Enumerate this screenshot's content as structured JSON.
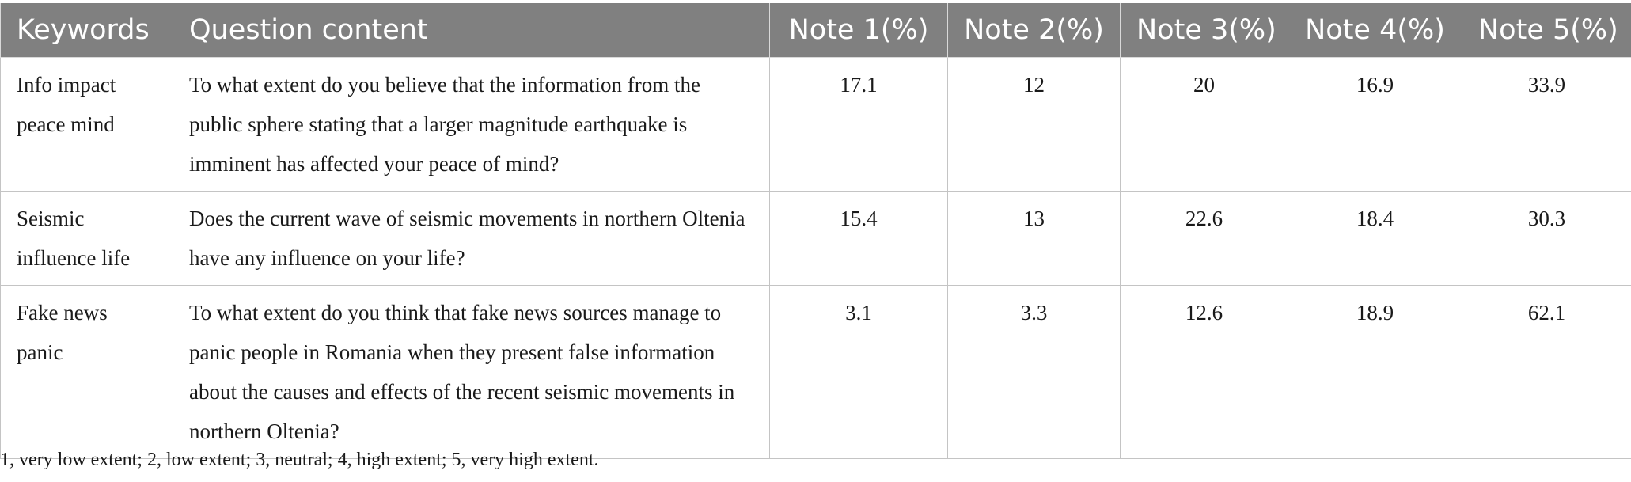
{
  "table": {
    "headers": [
      "Keywords",
      "Question content",
      "Note 1(%)",
      "Note 2(%)",
      "Note 3(%)",
      "Note 4(%)",
      "Note 5(%)"
    ],
    "rows": [
      {
        "keyword": "Info impact peace mind",
        "question": "To what extent do you believe that the information from the public sphere stating that a larger magnitude earthquake is imminent has affected your peace of mind?",
        "notes": [
          "17.1",
          "12",
          "20",
          "16.9",
          "33.9"
        ]
      },
      {
        "keyword": "Seismic influence life",
        "question": "Does the current wave of seismic movements in northern Oltenia have any influence on your life?",
        "notes": [
          "15.4",
          "13",
          "22.6",
          "18.4",
          "30.3"
        ]
      },
      {
        "keyword": "Fake news panic",
        "question": "To what extent do you think that fake news sources manage to panic people in Romania when they present false information about the causes and effects of the recent seismic movements in northern Oltenia?",
        "notes": [
          "3.1",
          "3.3",
          "12.6",
          "18.9",
          "62.1"
        ]
      }
    ]
  },
  "footnote": "1, very low extent; 2, low extent; 3, neutral; 4, high extent; 5, very high extent.",
  "colors": {
    "header_background": "#808080",
    "header_text": "#ffffff",
    "border": "#c4c4c4"
  }
}
